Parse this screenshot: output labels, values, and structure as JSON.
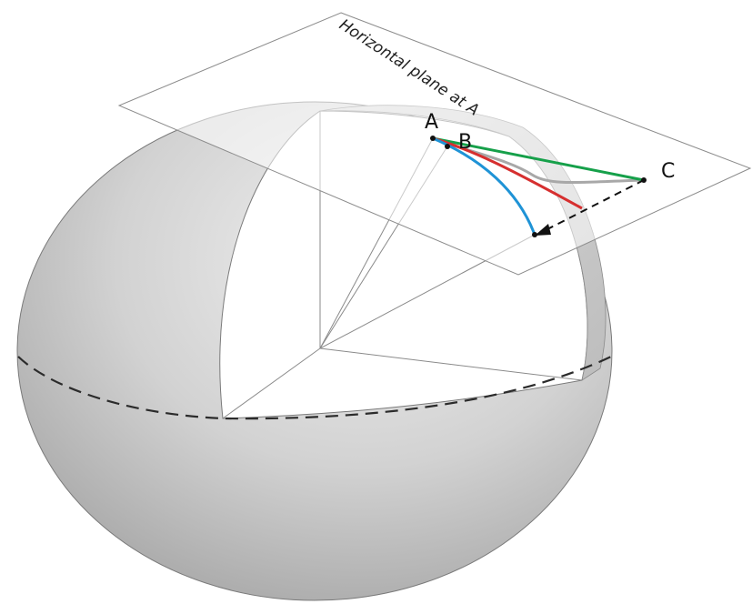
{
  "plane": {
    "label": "Horizontal plane at A"
  },
  "points": {
    "a": "A",
    "b": "B",
    "c": "C"
  },
  "colors": {
    "background": "#ffffff",
    "sphere_light": "#ededed",
    "sphere_dark": "#a9a9a9",
    "cutaway": "#ffffff",
    "outline": "#777777",
    "equator": "#2b2b2b",
    "plane_edge": "#8c8c8c",
    "green_curve": "#16a04a",
    "red_curve": "#d62f2f",
    "gray_curve": "#a8a8a8",
    "blue_curve": "#1f93d6",
    "projection": "#111111"
  },
  "icons": {
    "projection_arrowhead": "arrowhead-icon"
  }
}
